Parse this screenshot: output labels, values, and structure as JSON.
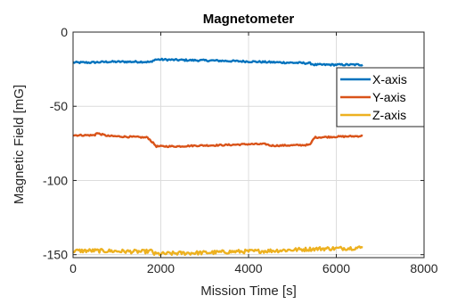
{
  "chart_data": {
    "type": "line",
    "title": "Magnetometer",
    "xlabel": "Mission Time [s]",
    "ylabel": "Magnetic Field [mG]",
    "xlim": [
      0,
      8000
    ],
    "ylim": [
      -152,
      0
    ],
    "xticks": [
      0,
      2000,
      4000,
      6000,
      8000
    ],
    "xtick_labels": [
      "0",
      "2000",
      "4000",
      "6000",
      "8000"
    ],
    "yticks": [
      -150,
      -100,
      -50,
      0
    ],
    "ytick_labels": [
      "-150",
      "-100",
      "-50",
      "0"
    ],
    "grid": true,
    "legend_position": "right",
    "series": [
      {
        "name": "X-axis",
        "color": "#0072BD",
        "x": [
          0,
          400,
          800,
          1200,
          1600,
          1800,
          1850,
          2000,
          2400,
          2800,
          3200,
          3600,
          4000,
          4400,
          4800,
          5200,
          5400,
          5500,
          6000,
          6400,
          6600
        ],
        "y": [
          -20.5,
          -20.5,
          -20,
          -20,
          -20,
          -20.2,
          -18.5,
          -18.5,
          -18.8,
          -19,
          -19.2,
          -19.5,
          -19.8,
          -20.2,
          -20.5,
          -20.8,
          -21,
          -22,
          -22,
          -22,
          -22
        ]
      },
      {
        "name": "Y-axis",
        "color": "#D95319",
        "x": [
          0,
          300,
          500,
          520,
          800,
          1200,
          1500,
          1600,
          1700,
          1850,
          1900,
          2400,
          2800,
          3200,
          3600,
          4000,
          4400,
          4500,
          4600,
          5000,
          5400,
          5500,
          6000,
          6400,
          6600
        ],
        "y": [
          -69.5,
          -69.5,
          -69.5,
          -68,
          -70,
          -70.5,
          -70.8,
          -71,
          -71,
          -75.5,
          -77,
          -77,
          -76.5,
          -76.3,
          -76,
          -75.5,
          -75.5,
          -76.5,
          -76.5,
          -76.3,
          -76,
          -71,
          -70.5,
          -70.2,
          -70
        ],
        "noise": 0.5
      },
      {
        "name": "Z-axis",
        "color": "#EDB120",
        "x": [
          0,
          400,
          800,
          1200,
          1600,
          1800,
          1850,
          2000,
          2400,
          2800,
          3200,
          3600,
          4000,
          4400,
          4800,
          5200,
          5600,
          6000,
          6400,
          6600
        ],
        "y": [
          -147.5,
          -147.3,
          -147.5,
          -147.8,
          -148,
          -147.5,
          -149.5,
          -149.5,
          -149,
          -148.8,
          -148.5,
          -148,
          -147.8,
          -147.5,
          -147,
          -146.5,
          -146,
          -145.8,
          -145.5,
          -145.3
        ],
        "noise": 1.3
      }
    ]
  }
}
